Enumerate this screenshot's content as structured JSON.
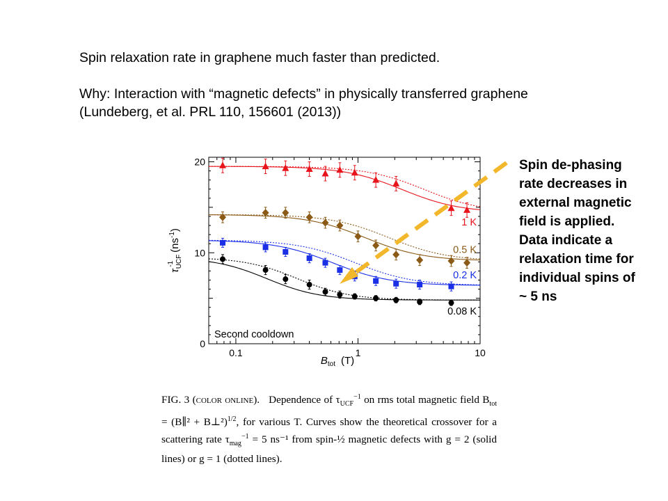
{
  "intro": {
    "line1": "Spin relaxation rate in graphene much faster than predicted.",
    "line2": "Why:  Interaction with “magnetic defects” in physically transferred graphene (Lundeberg, et al. PRL 110, 156601 (2013))"
  },
  "callout": {
    "text": "Spin de-phasing rate decreases in external magnetic field is applied. Data indicate a relaxation time for individual spins of ~ 5 ns"
  },
  "caption": {
    "fig_label": "FIG. 3 (color online).",
    "text_before": "Dependence of τ",
    "ucf_sub": "UCF",
    "ucf_sup": "−1",
    "text_mid1": " on rms total magnetic field B",
    "tot_sub": "tot",
    "formula": " = (B∥² + B⊥²)",
    "formula_sup": "1/2",
    "text_mid2": ", for various T. Curves show the theoretical crossover for a scattering rate τ",
    "mag_sub": "mag",
    "mag_sup": "−1",
    "text_end": " = 5 ns⁻¹ from spin-½ magnetic defects with g = 2 (solid lines) or g = 1 (dotted lines)."
  },
  "colors": {
    "1K": "#e8141c",
    "0.5K": "#8b5a16",
    "0.2K": "#1a2fe6",
    "0.08K": "#000000",
    "arrow": "#f2b72a"
  },
  "chart_data": {
    "type": "scatter",
    "xscale": "log",
    "xlim": [
      0.06,
      10
    ],
    "ylim": [
      0,
      20.5
    ],
    "xticks": [
      0.1,
      1,
      10
    ],
    "xtick_labels": [
      "0.1",
      "1",
      "10"
    ],
    "yticks": [
      0,
      10,
      20
    ],
    "ytick_labels": [
      "0",
      "10",
      "20"
    ],
    "xlabel_main": "B",
    "xlabel_sub": "tot",
    "xlabel_unit": "(T)",
    "ylabel_main": "τ",
    "ylabel_sub": "UCF",
    "ylabel_sup": "-1",
    "ylabel_unit": "(ns",
    "ylabel_unit_sup": "-1",
    "ylabel_close": ")",
    "annotation": "Second cooldown",
    "series": [
      {
        "name": "1 K",
        "marker": "triangle",
        "color": "#e8141c",
        "x": [
          0.078,
          0.175,
          0.255,
          0.4,
          0.54,
          0.71,
          0.94,
          1.4,
          2.05,
          5.8,
          7.8
        ],
        "y": [
          19.6,
          19.5,
          19.3,
          19.2,
          18.7,
          19.1,
          18.8,
          18.0,
          17.6,
          14.9,
          14.7
        ],
        "err": [
          0.8,
          0.8,
          0.8,
          0.8,
          0.8,
          0.8,
          0.8,
          0.8,
          0.8,
          0.8,
          0.8
        ],
        "solid": {
          "high": 19.5,
          "low": 14.4,
          "mid": 2.3,
          "w": 1.1
        },
        "dotted": {
          "high": 19.5,
          "low": 14.4,
          "mid": 3.5,
          "w": 1.1
        }
      },
      {
        "name": "0.5 K",
        "marker": "diamond",
        "color": "#8b5a16",
        "x": [
          0.078,
          0.175,
          0.255,
          0.4,
          0.54,
          0.71,
          1.0,
          1.4,
          2.05,
          3.2,
          5.8,
          7.8
        ],
        "y": [
          13.9,
          14.4,
          14.4,
          13.9,
          13.3,
          13.0,
          11.8,
          10.8,
          9.8,
          9.2,
          9.1,
          8.9
        ],
        "err": [
          0.6,
          0.6,
          0.6,
          0.6,
          0.6,
          0.6,
          0.6,
          0.6,
          0.6,
          0.6,
          0.6,
          0.6
        ],
        "solid": {
          "high": 14.2,
          "low": 9.1,
          "mid": 1.15,
          "w": 1.1
        },
        "dotted": {
          "high": 14.2,
          "low": 9.1,
          "mid": 1.8,
          "w": 1.1
        }
      },
      {
        "name": "0.2 K",
        "marker": "square",
        "color": "#1a2fe6",
        "x": [
          0.078,
          0.175,
          0.255,
          0.4,
          0.54,
          0.71,
          0.94,
          1.4,
          2.05,
          3.2,
          5.8
        ],
        "y": [
          11.1,
          10.6,
          10.1,
          9.4,
          8.9,
          8.1,
          7.4,
          6.9,
          6.6,
          6.5,
          6.3
        ],
        "err": [
          0.5,
          0.5,
          0.5,
          0.5,
          0.5,
          0.5,
          0.5,
          0.5,
          0.5,
          0.5,
          0.5
        ],
        "solid": {
          "high": 11.4,
          "low": 6.4,
          "mid": 0.62,
          "w": 1.1
        },
        "dotted": {
          "high": 11.4,
          "low": 6.4,
          "mid": 0.95,
          "w": 1.1
        }
      },
      {
        "name": "0.08 K",
        "marker": "circle",
        "color": "#000000",
        "x": [
          0.078,
          0.175,
          0.255,
          0.4,
          0.54,
          0.71,
          0.94,
          1.4,
          2.05,
          3.2,
          5.8
        ],
        "y": [
          9.3,
          8.1,
          7.1,
          6.5,
          5.7,
          5.4,
          5.2,
          5.0,
          4.8,
          4.6,
          4.5
        ],
        "err": [
          0.5,
          0.5,
          0.5,
          0.5,
          0.4,
          0.4,
          0.3,
          0.3,
          0.3,
          0.3,
          0.3
        ],
        "solid": {
          "high": 9.5,
          "low": 4.8,
          "mid": 0.18,
          "w": 1.0
        },
        "dotted": {
          "high": 9.5,
          "low": 4.8,
          "mid": 0.32,
          "w": 1.0
        }
      }
    ]
  }
}
